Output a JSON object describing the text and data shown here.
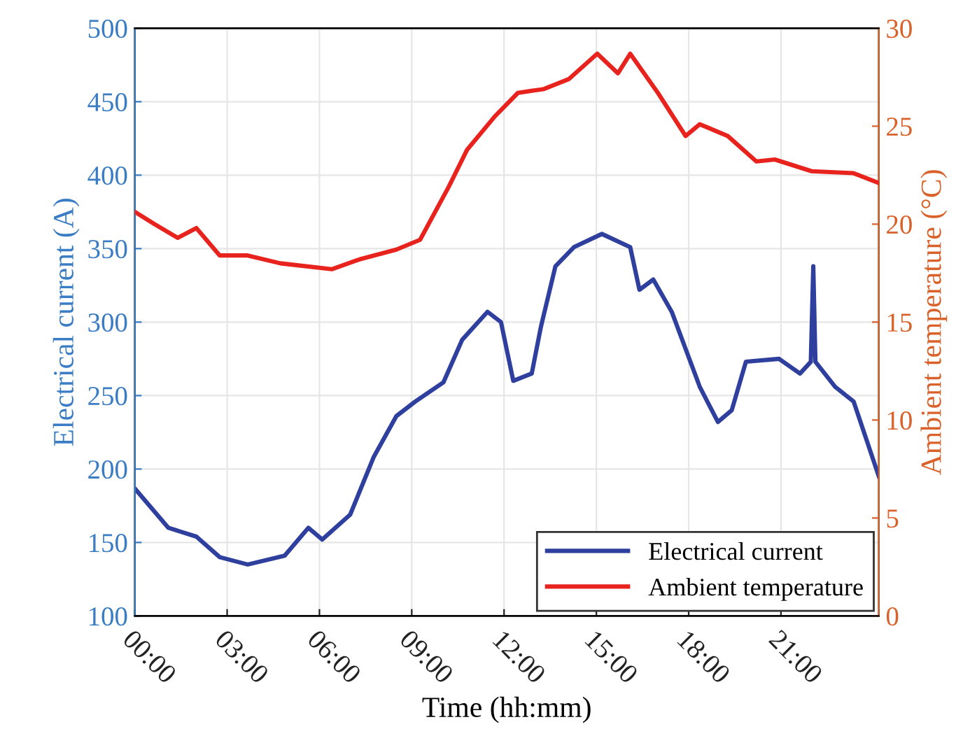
{
  "chart_data": {
    "type": "line",
    "xlabel": "Time (hh:mm)",
    "ylabel": "Electrical current (A)",
    "y2label": "Ambient temperature (°C)",
    "xlim": [
      0,
      24.18
    ],
    "xticks": [
      {
        "value": 0,
        "label": "00:00"
      },
      {
        "value": 3,
        "label": "03:00"
      },
      {
        "value": 6,
        "label": "06:00"
      },
      {
        "value": 9,
        "label": "09:00"
      },
      {
        "value": 12,
        "label": "12:00"
      },
      {
        "value": 15,
        "label": "15:00"
      },
      {
        "value": 18,
        "label": "18:00"
      },
      {
        "value": 21,
        "label": "21:00"
      }
    ],
    "ylim": [
      100,
      500
    ],
    "yticks": [
      100,
      150,
      200,
      250,
      300,
      350,
      400,
      450,
      500
    ],
    "y2lim": [
      0,
      30
    ],
    "y2ticks": [
      0,
      5,
      10,
      15,
      20,
      25,
      30
    ],
    "grid": true,
    "legend": "bottom right",
    "line_style": "solid",
    "marker": "none",
    "series": [
      {
        "name": "Electrical current",
        "color": "#2e3f9e",
        "x": [
          0.03,
          1.09,
          2.0,
          2.76,
          3.67,
          4.87,
          5.64,
          6.09,
          7.0,
          7.76,
          8.5,
          9.12,
          10.03,
          10.64,
          11.46,
          11.9,
          12.3,
          12.9,
          13.2,
          13.67,
          14.27,
          15.18,
          16.1,
          16.4,
          16.85,
          17.45,
          18.36,
          18.95,
          19.4,
          19.86,
          20.94,
          21.62,
          21.97,
          22.05,
          22.12,
          22.76,
          23.36,
          24.18
        ],
        "values": [
          186,
          160,
          154,
          140,
          135,
          141,
          160,
          152,
          169,
          208,
          236,
          246,
          259,
          288,
          307,
          300,
          260,
          265,
          297,
          338,
          351,
          360,
          351,
          322,
          329,
          307,
          256,
          232,
          240,
          273,
          275,
          265,
          273,
          338,
          273,
          256,
          246,
          195
        ]
      },
      {
        "name": "Ambient temperature",
        "color": "#e8231e",
        "axis": "y2",
        "x": [
          0.03,
          0.64,
          1.39,
          2.0,
          2.76,
          3.67,
          4.73,
          6.4,
          7.3,
          8.5,
          9.27,
          10.2,
          10.8,
          11.7,
          12.45,
          13.3,
          14.1,
          15.03,
          15.7,
          16.1,
          17.0,
          17.9,
          18.36,
          19.27,
          20.2,
          20.8,
          22.0,
          23.36,
          24.18
        ],
        "values": [
          20.6,
          20.0,
          19.3,
          19.8,
          18.4,
          18.4,
          18.0,
          17.7,
          18.2,
          18.7,
          19.2,
          21.9,
          23.8,
          25.5,
          26.7,
          26.9,
          27.4,
          28.7,
          27.7,
          28.7,
          26.7,
          24.5,
          25.1,
          24.5,
          23.2,
          23.3,
          22.7,
          22.6,
          22.1
        ]
      }
    ]
  }
}
